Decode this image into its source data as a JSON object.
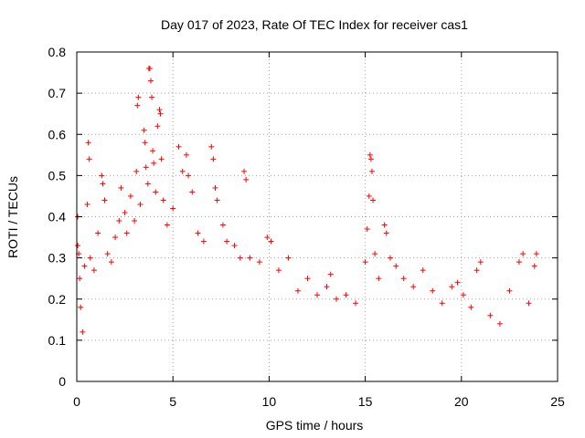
{
  "chart_data": {
    "type": "scatter",
    "title": "Day 017 of 2023, Rate Of TEC Index for receiver cas1",
    "xlabel": "GPS time / hours",
    "ylabel": "ROTI / TECUs",
    "xlim": [
      0,
      25
    ],
    "ylim": [
      0,
      0.8
    ],
    "xticks": [
      0,
      5,
      10,
      15,
      20,
      25
    ],
    "yticks": [
      0,
      0.1,
      0.2,
      0.3,
      0.4,
      0.5,
      0.6,
      0.7,
      0.8
    ],
    "grid": true,
    "marker": "plus",
    "color": "#ff0000",
    "series": [
      {
        "points": [
          [
            0.05,
            0.4
          ],
          [
            0.05,
            0.33
          ],
          [
            0.1,
            0.31
          ],
          [
            0.15,
            0.25
          ],
          [
            0.2,
            0.18
          ],
          [
            0.3,
            0.12
          ],
          [
            0.4,
            0.28
          ],
          [
            0.55,
            0.43
          ],
          [
            0.6,
            0.58
          ],
          [
            0.65,
            0.54
          ],
          [
            0.7,
            0.3
          ],
          [
            0.9,
            0.27
          ],
          [
            1.1,
            0.36
          ],
          [
            1.3,
            0.5
          ],
          [
            1.35,
            0.48
          ],
          [
            1.45,
            0.44
          ],
          [
            1.6,
            0.31
          ],
          [
            1.8,
            0.29
          ],
          [
            2.0,
            0.35
          ],
          [
            2.2,
            0.39
          ],
          [
            2.3,
            0.47
          ],
          [
            2.5,
            0.41
          ],
          [
            2.6,
            0.36
          ],
          [
            2.8,
            0.45
          ],
          [
            3.0,
            0.39
          ],
          [
            3.1,
            0.51
          ],
          [
            3.15,
            0.67
          ],
          [
            3.2,
            0.69
          ],
          [
            3.3,
            0.43
          ],
          [
            3.5,
            0.61
          ],
          [
            3.55,
            0.58
          ],
          [
            3.6,
            0.52
          ],
          [
            3.7,
            0.48
          ],
          [
            3.75,
            0.76
          ],
          [
            3.8,
            0.76
          ],
          [
            3.85,
            0.73
          ],
          [
            3.9,
            0.69
          ],
          [
            3.95,
            0.56
          ],
          [
            4.0,
            0.53
          ],
          [
            4.1,
            0.46
          ],
          [
            4.2,
            0.62
          ],
          [
            4.3,
            0.66
          ],
          [
            4.35,
            0.65
          ],
          [
            4.4,
            0.54
          ],
          [
            4.5,
            0.44
          ],
          [
            4.7,
            0.38
          ],
          [
            5.0,
            0.42
          ],
          [
            5.3,
            0.57
          ],
          [
            5.5,
            0.51
          ],
          [
            5.7,
            0.55
          ],
          [
            5.8,
            0.5
          ],
          [
            6.0,
            0.46
          ],
          [
            6.3,
            0.36
          ],
          [
            6.6,
            0.34
          ],
          [
            7.0,
            0.57
          ],
          [
            7.1,
            0.54
          ],
          [
            7.2,
            0.47
          ],
          [
            7.3,
            0.44
          ],
          [
            7.6,
            0.38
          ],
          [
            7.8,
            0.34
          ],
          [
            8.2,
            0.33
          ],
          [
            8.5,
            0.3
          ],
          [
            8.7,
            0.51
          ],
          [
            8.8,
            0.49
          ],
          [
            9.0,
            0.3
          ],
          [
            9.5,
            0.29
          ],
          [
            9.9,
            0.35
          ],
          [
            10.1,
            0.34
          ],
          [
            10.5,
            0.27
          ],
          [
            11.0,
            0.3
          ],
          [
            11.5,
            0.22
          ],
          [
            12.0,
            0.25
          ],
          [
            12.5,
            0.21
          ],
          [
            13.0,
            0.23
          ],
          [
            13.2,
            0.26
          ],
          [
            13.5,
            0.2
          ],
          [
            14.0,
            0.21
          ],
          [
            14.5,
            0.19
          ],
          [
            15.0,
            0.29
          ],
          [
            15.1,
            0.37
          ],
          [
            15.2,
            0.45
          ],
          [
            15.25,
            0.55
          ],
          [
            15.3,
            0.54
          ],
          [
            15.35,
            0.51
          ],
          [
            15.4,
            0.44
          ],
          [
            15.5,
            0.31
          ],
          [
            15.7,
            0.25
          ],
          [
            16.0,
            0.38
          ],
          [
            16.1,
            0.36
          ],
          [
            16.3,
            0.3
          ],
          [
            16.6,
            0.28
          ],
          [
            17.0,
            0.25
          ],
          [
            17.5,
            0.23
          ],
          [
            18.0,
            0.27
          ],
          [
            18.5,
            0.22
          ],
          [
            19.0,
            0.19
          ],
          [
            19.5,
            0.23
          ],
          [
            19.8,
            0.24
          ],
          [
            20.1,
            0.21
          ],
          [
            20.5,
            0.18
          ],
          [
            20.8,
            0.27
          ],
          [
            21.0,
            0.29
          ],
          [
            21.5,
            0.16
          ],
          [
            22.0,
            0.14
          ],
          [
            22.5,
            0.22
          ],
          [
            23.0,
            0.29
          ],
          [
            23.2,
            0.31
          ],
          [
            23.5,
            0.19
          ],
          [
            23.8,
            0.28
          ],
          [
            23.9,
            0.31
          ]
        ]
      }
    ]
  }
}
